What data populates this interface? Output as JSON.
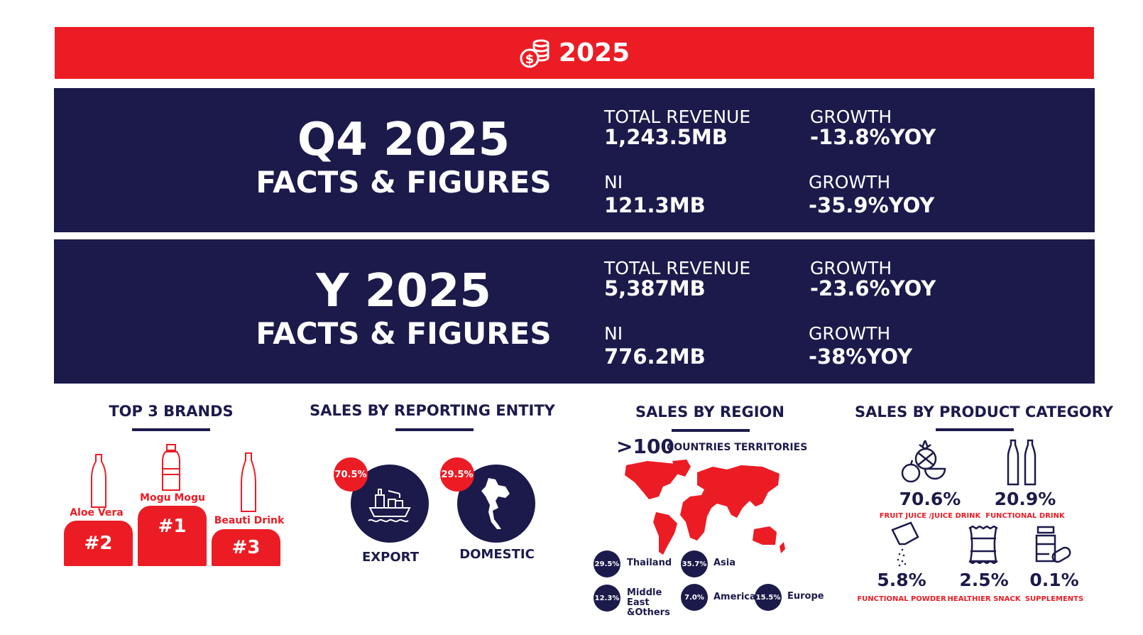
{
  "banner": {
    "year": "2025",
    "icon": "coins-dollar-icon"
  },
  "q4": {
    "title": "Q4 2025",
    "subtitle": "FACTS & FIGURES",
    "revenue_label": "TOTAL REVENUE",
    "revenue": "1,243.5MB",
    "revenue_growth_label": "GROWTH",
    "revenue_growth": "-13.8%YOY",
    "ni_label": "NI",
    "ni": "121.3MB",
    "ni_growth_label": "GROWTH",
    "ni_growth": "-35.9%YOY"
  },
  "year": {
    "title": "Y 2025",
    "subtitle": "FACTS & FIGURES",
    "revenue_label": "TOTAL REVENUE",
    "revenue": "5,387MB",
    "revenue_growth_label": "GROWTH",
    "revenue_growth": "-23.6%YOY",
    "ni_label": "NI",
    "ni": "776.2MB",
    "ni_growth_label": "GROWTH",
    "ni_growth": "-38%YOY"
  },
  "brands": {
    "heading": "TOP 3 BRANDS",
    "items": [
      {
        "name": "Aloe Vera",
        "rank": "#2"
      },
      {
        "name": "Mogu Mogu",
        "rank": "#1"
      },
      {
        "name": "Beauti Drink",
        "rank": "#3"
      }
    ]
  },
  "entity": {
    "heading": "SALES BY REPORTING ENTITY",
    "items": [
      {
        "label": "EXPORT",
        "pct": "70.5%",
        "icon": "cargo-ship-icon"
      },
      {
        "label": "DOMESTIC",
        "pct": "29.5%",
        "icon": "thailand-map-icon"
      }
    ]
  },
  "region": {
    "heading": "SALES BY REGION",
    "count": ">100",
    "count_label": "COUNTRIES TERRITORIES",
    "items": [
      {
        "pct": "29.5%",
        "name": "Thailand"
      },
      {
        "pct": "35.7%",
        "name": "Asia"
      },
      {
        "pct": "12.3%",
        "name": "Middle East &Others"
      },
      {
        "pct": "7.0%",
        "name": "America"
      },
      {
        "pct": "15.5%",
        "name": "Europe"
      }
    ]
  },
  "category": {
    "heading": "SALES BY PRODUCT CATEGORY",
    "items": [
      {
        "pct": "70.6%",
        "name": "FRUIT JUICE /JUICE DRINK",
        "icon": "fruits-icon"
      },
      {
        "pct": "20.9%",
        "name": "FUNCTIONAL DRINK",
        "icon": "bottles-icon"
      },
      {
        "pct": "5.8%",
        "name": "FUNCTIONAL POWDER",
        "icon": "powder-sachet-icon"
      },
      {
        "pct": "2.5%",
        "name": "HEALTHIER SNACK",
        "icon": "snack-bag-icon"
      },
      {
        "pct": "0.1%",
        "name": "SUPPLEMENTS",
        "icon": "supplement-bottle-icon"
      }
    ]
  },
  "colors": {
    "red": "#ec1c24",
    "navy": "#1c1a4b"
  }
}
